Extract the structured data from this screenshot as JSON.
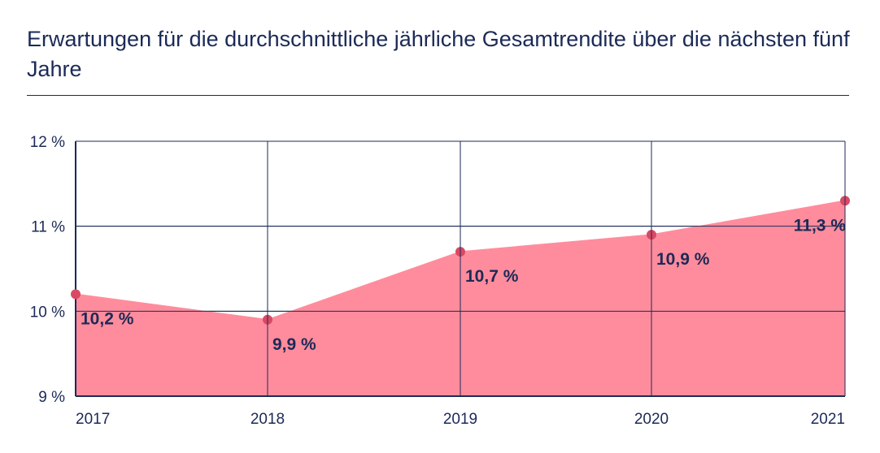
{
  "chart_data": {
    "type": "area",
    "title": "Erwartungen für die durchschnittliche jährliche Gesamtrendite über die nächsten fünf Jahre",
    "categories": [
      "2017",
      "2018",
      "2019",
      "2020",
      "2021"
    ],
    "values": [
      10.2,
      9.9,
      10.7,
      10.9,
      11.3
    ],
    "data_labels": [
      "10,2 %",
      "9,9 %",
      "10,7 %",
      "10,9 %",
      "11,3 %"
    ],
    "ylim": [
      9,
      12
    ],
    "y_ticks": [
      9,
      10,
      11,
      12
    ],
    "y_tick_labels": [
      "9 %",
      "10 %",
      "11 %",
      "12 %"
    ],
    "xlabel": "",
    "ylabel": "",
    "grid": true,
    "colors": {
      "fill": "#ff8c9c",
      "marker": "#d94964",
      "ink": "#1b2a57"
    }
  }
}
